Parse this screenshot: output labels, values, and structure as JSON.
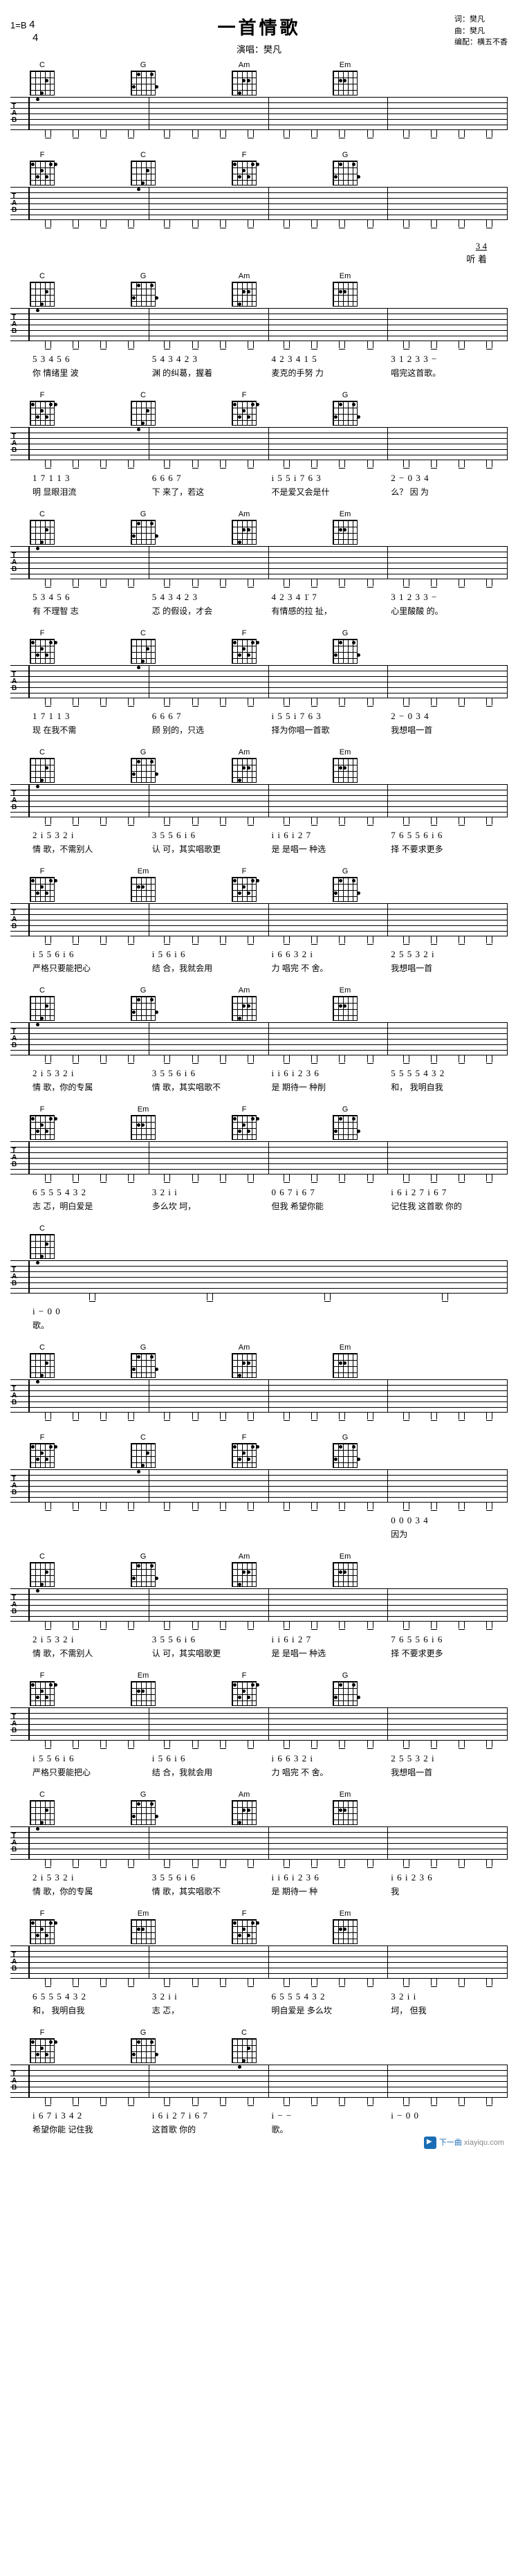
{
  "meta": {
    "key_sig": "1=B",
    "time_sig": "4/4"
  },
  "title": "一首情歌",
  "subtitle_prefix": "演唱：",
  "artist": "樊凡",
  "credits": {
    "ci": "词：樊凡",
    "qu": "曲：樊凡",
    "bianpei": "编配：横五不香"
  },
  "watermark_brand": "下一曲",
  "watermark_url": "xiayiqu.com",
  "chords": {
    "c": "C",
    "g": "G",
    "am": "Am",
    "em": "Em",
    "f": "F"
  },
  "lead_in": {
    "numbers": "3 4",
    "text": "听 着"
  },
  "systems": [
    {
      "chords": [
        "C",
        "G",
        "Am",
        "Em"
      ],
      "has_tab_clef": true,
      "tab_notes": [
        [
          "",
          "",
          "x",
          "",
          "",
          "",
          "x",
          "",
          "",
          "",
          "x",
          ""
        ],
        [
          "",
          "",
          "",
          "",
          "",
          "",
          "",
          "",
          "",
          "",
          "",
          ""
        ],
        [
          "",
          "",
          "",
          "",
          "x",
          "",
          "",
          "",
          "",
          "",
          "",
          ""
        ]
      ],
      "jianpu": "",
      "lyrics": "",
      "intro": true
    },
    {
      "chords": [
        "F",
        "C",
        "F",
        "G"
      ],
      "has_tab_clef": true,
      "intro": true
    },
    {
      "chords": [
        "C",
        "G",
        "Am",
        "Em"
      ],
      "has_tab_clef": true,
      "jianpu": [
        "5  3 4 5 6",
        "5  4 3 4   2 3",
        "4 2 3 4 1   5",
        "3 1 2 3 3  −"
      ],
      "lyrics": [
        "你 情绪里 波",
        "渊   的纠葛，握着",
        "麦克的手努  力",
        "唱完这首歌。"
      ]
    },
    {
      "chords": [
        "F",
        "C",
        "F",
        "G"
      ],
      "has_tab_clef": true,
      "jianpu": [
        "1   7 1 1   3",
        "6   6 6 7",
        "i 5 5 i 7 6 3",
        "2    −   0 3 4"
      ],
      "lyrics": [
        "明  显眼泪流",
        "下      来了，若这",
        "不是爱又会是什",
        "么？        因 为"
      ]
    },
    {
      "chords": [
        "C",
        "G",
        "Am",
        "Em"
      ],
      "has_tab_clef": true,
      "jianpu": [
        "5   3 4 5 6",
        "5  4 3 4   2 3",
        "4 2 3 4 1̇   7",
        "3 1 2 3 3  −"
      ],
      "lyrics": [
        "有  不理智 志",
        "忑  的假设，才会",
        "有情感的拉  扯，",
        "心里酸酸 的。"
      ]
    },
    {
      "chords": [
        "F",
        "C",
        "F",
        "G"
      ],
      "has_tab_clef": true,
      "jianpu": [
        "1   7 1 1   3",
        "6    6 6 7",
        "i 5 5 i 7 6 3",
        "2    −   0 3 4"
      ],
      "lyrics": [
        "现  在我不需",
        "顾      别的，只选",
        "择为你唱一首歌",
        "          我想唱一首"
      ]
    },
    {
      "chords": [
        "C",
        "G",
        "Am",
        "Em"
      ],
      "has_tab_clef": true,
      "jianpu": [
        "2 i   5 3 2 i",
        "3 5 5 6 i 6",
        "i  i 6 i  2 7",
        "7 6 5 5 6 i 6"
      ],
      "lyrics": [
        "情 歌，不需别人",
        "认  可，其实唱歌更",
        "是 是唱一  种选",
        "择 不要求更多"
      ]
    },
    {
      "chords": [
        "F",
        "Em",
        "F",
        "G"
      ],
      "has_tab_clef": true,
      "jianpu": [
        "i 5 5 6 i 6",
        "i    5 6 i 6",
        "i 6 6 3 2 i",
        "2 5 5 3 2 i"
      ],
      "lyrics": [
        "严格只要能把心",
        "结   合，我就会用",
        "力 唱完  不 舍。",
        "      我想唱一首"
      ]
    },
    {
      "chords": [
        "C",
        "G",
        "Am",
        "Em"
      ],
      "has_tab_clef": true,
      "jianpu": [
        "2 i   5 3 2 i",
        "3 5 5 6 i 6",
        "i  i 6 i 2 3 6",
        "5 5 5   5 4 3 2"
      ],
      "lyrics": [
        "情 歌，你的专属",
        "情  歌，其实唱歌不",
        "是  期待一  种削",
        "和，      我明自我"
      ]
    },
    {
      "chords": [
        "F",
        "Em",
        "F",
        "G"
      ],
      "has_tab_clef": true,
      "jianpu": [
        "6 5 5   5 4 3 2",
        "3 2 i    i",
        "0 6 7  i 6 7",
        "i 6 i 2 7  i 6 7"
      ],
      "lyrics": [
        "志 忑，明白爱是",
        "多么坎 坷，",
        "      但我  希望你能",
        "记住我  这首歌  你的"
      ]
    },
    {
      "chords": [
        "C"
      ],
      "has_tab_clef": true,
      "single_measure": true,
      "jianpu": [
        "i  − 0 0"
      ],
      "lyrics": [
        "歌。"
      ]
    },
    {
      "chords": [
        "C",
        "G",
        "Am",
        "Em"
      ],
      "has_tab_clef": true,
      "intro": true
    },
    {
      "chords": [
        "F",
        "C",
        "F",
        "G"
      ],
      "has_tab_clef": true,
      "intro": true,
      "jianpu": [
        "",
        "",
        "",
        "0  0  0  3 4"
      ],
      "lyrics": [
        "",
        "",
        "",
        "            因为"
      ]
    },
    {
      "chords": [
        "C",
        "G",
        "Am",
        "Em"
      ],
      "has_tab_clef": true,
      "jianpu": [
        "2 i   5 3 2 i",
        "3 5 5 6 i 6",
        "i  i 6 i  2 7",
        "7 6 5 5 6 i 6"
      ],
      "lyrics": [
        "情 歌，不需别人",
        "认  可，其实唱歌更",
        "是 是唱一  种选",
        "择 不要求更多"
      ]
    },
    {
      "chords": [
        "F",
        "Em",
        "F",
        "G"
      ],
      "has_tab_clef": true,
      "jianpu": [
        "i 5 5 6 i 6",
        "i    5 6 i 6",
        "i 6 6 3 2 i",
        "2 5 5 3 2 i"
      ],
      "lyrics": [
        "严格只要能把心",
        "结   合，我就会用",
        "力 唱完  不 舍。",
        "      我想唱一首"
      ]
    },
    {
      "chords": [
        "C",
        "G",
        "Am",
        "Em"
      ],
      "has_tab_clef": true,
      "jianpu": [
        "2 i   5 3 2 i",
        "3 5 5 6 i 6",
        "i  i 6 i 2 3 6",
        "i 6 i 2 3 6"
      ],
      "lyrics": [
        "情 歌，你的专属",
        "情  歌，其实唱歌不",
        "是  期待一  种",
        "      我"
      ]
    },
    {
      "chords": [
        "F",
        "Em",
        "F",
        "Em"
      ],
      "has_tab_clef": true,
      "jianpu": [
        "6 5 5   5 4 3 2",
        "3 2 i    i",
        "6 5 5   5 4 3 2",
        "3 2 i    i"
      ],
      "lyrics": [
        "和，     我明自我",
        "志 忑，",
        "明自爱是 多么坎",
        "坷，         但我"
      ]
    },
    {
      "chords": [
        "F",
        "G",
        "C",
        ""
      ],
      "has_tab_clef": true,
      "jianpu": [
        "i 6 7 i 3 4 2",
        "i 6 i 2 7  i 6 7",
        "i   −    −",
        "i   −   0   0"
      ],
      "lyrics": [
        "希望你能  记住我",
        "这首歌     你的",
        "歌。",
        ""
      ]
    }
  ]
}
